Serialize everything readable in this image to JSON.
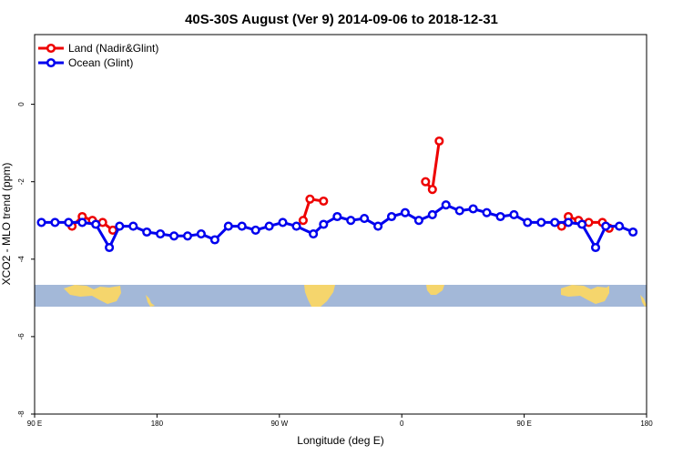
{
  "chart_data": {
    "type": "line",
    "title": "40S-30S August (Ver 9)   2014-09-06 to 2018-12-31",
    "xlabel": "Longitude (deg E)",
    "ylabel": "XCO2 - MLO trend (ppm)",
    "xlim": [
      90,
      540
    ],
    "ylim": [
      -8,
      1.8
    ],
    "x_ticks": [
      {
        "value": 90,
        "label": "90 E"
      },
      {
        "value": 180,
        "label": "180"
      },
      {
        "value": 270,
        "label": "90 W"
      },
      {
        "value": 360,
        "label": "0"
      },
      {
        "value": 450,
        "label": "90 E"
      },
      {
        "value": 540,
        "label": "180"
      }
    ],
    "y_ticks": [
      {
        "value": 0,
        "label": "0"
      },
      {
        "value": -2,
        "label": "-2"
      },
      {
        "value": -4,
        "label": "-4"
      },
      {
        "value": -6,
        "label": "-6"
      },
      {
        "value": -8,
        "label": "-8"
      }
    ],
    "legend": {
      "position": "top-left"
    },
    "series": [
      {
        "name": "Land (Nadir&Glint)",
        "color": "#ee0000",
        "segments": [
          [
            [
              117.5,
              -3.15
            ],
            [
              125,
              -2.9
            ],
            [
              132.5,
              -3.0
            ],
            [
              140,
              -3.05
            ],
            [
              147.5,
              -3.25
            ]
          ],
          [
            [
              287.5,
              -3.0
            ],
            [
              292.5,
              -2.45
            ],
            [
              302.5,
              -2.5
            ]
          ],
          [
            [
              377.5,
              -2.0
            ],
            [
              382.5,
              -2.2
            ],
            [
              387.5,
              -0.95
            ]
          ],
          [
            [
              477.5,
              -3.15
            ],
            [
              482.5,
              -2.9
            ],
            [
              490,
              -3.0
            ],
            [
              497.5,
              -3.05
            ],
            [
              507.5,
              -3.05
            ],
            [
              512.5,
              -3.2
            ]
          ]
        ]
      },
      {
        "name": "Ocean (Glint)",
        "color": "#0000ee",
        "segments": [
          [
            [
              95,
              -3.05
            ],
            [
              105,
              -3.05
            ],
            [
              115,
              -3.05
            ],
            [
              125,
              -3.05
            ],
            [
              135,
              -3.1
            ],
            [
              145,
              -3.7
            ],
            [
              152.5,
              -3.15
            ],
            [
              162.5,
              -3.15
            ],
            [
              172.5,
              -3.3
            ],
            [
              182.5,
              -3.35
            ],
            [
              192.5,
              -3.4
            ],
            [
              202.5,
              -3.4
            ],
            [
              212.5,
              -3.35
            ],
            [
              222.5,
              -3.5
            ],
            [
              232.5,
              -3.15
            ],
            [
              242.5,
              -3.15
            ],
            [
              252.5,
              -3.25
            ],
            [
              262.5,
              -3.15
            ],
            [
              272.5,
              -3.05
            ],
            [
              282.5,
              -3.15
            ],
            [
              295,
              -3.35
            ],
            [
              302.5,
              -3.1
            ],
            [
              312.5,
              -2.9
            ],
            [
              322.5,
              -3.0
            ],
            [
              332.5,
              -2.95
            ],
            [
              342.5,
              -3.15
            ],
            [
              352.5,
              -2.9
            ],
            [
              362.5,
              -2.8
            ],
            [
              372.5,
              -3.0
            ],
            [
              382.5,
              -2.85
            ],
            [
              392.5,
              -2.6
            ],
            [
              402.5,
              -2.75
            ],
            [
              412.5,
              -2.7
            ],
            [
              422.5,
              -2.8
            ],
            [
              432.5,
              -2.9
            ],
            [
              442.5,
              -2.85
            ],
            [
              452.5,
              -3.05
            ],
            [
              462.5,
              -3.05
            ],
            [
              472.5,
              -3.05
            ],
            [
              482.5,
              -3.05
            ],
            [
              492.5,
              -3.1
            ],
            [
              502.5,
              -3.7
            ],
            [
              510,
              -3.15
            ],
            [
              520,
              -3.15
            ],
            [
              530,
              -3.3
            ]
          ]
        ]
      }
    ]
  }
}
